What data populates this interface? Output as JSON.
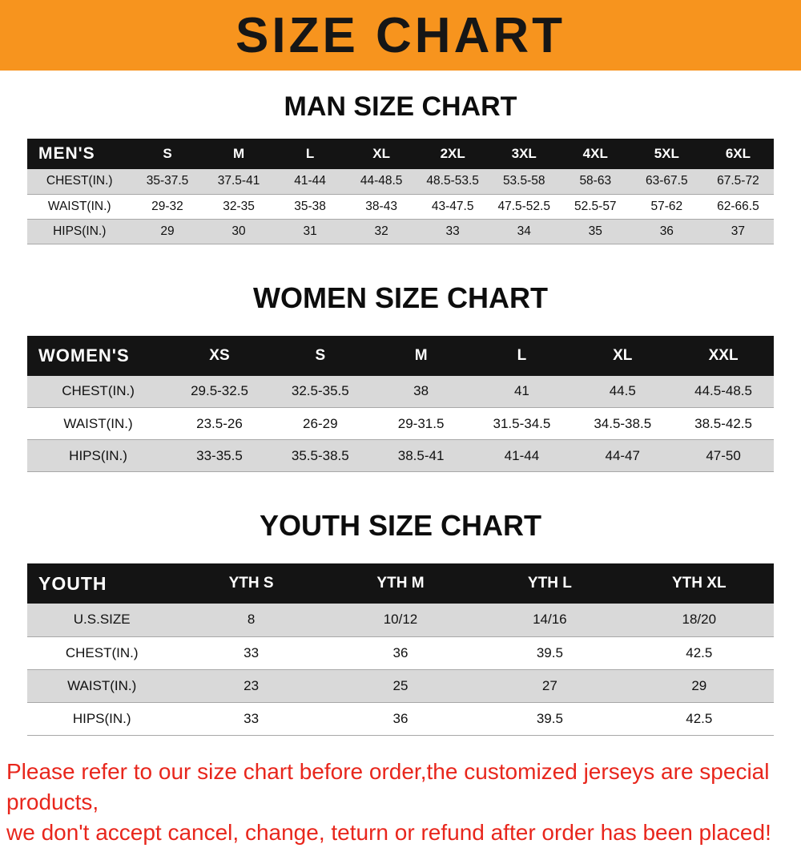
{
  "banner": {
    "title": "SIZE CHART"
  },
  "colors": {
    "banner_bg": "#f7941e",
    "table_header_bg": "#141414",
    "row_alt_gray": "#d9d9d9",
    "note_red": "#e8261c"
  },
  "men": {
    "heading": "MAN SIZE CHART",
    "label": "MEN'S",
    "sizes": [
      "S",
      "M",
      "L",
      "XL",
      "2XL",
      "3XL",
      "4XL",
      "5XL",
      "6XL"
    ],
    "rows": [
      {
        "label": "CHEST(IN.)",
        "cells": [
          "35-37.5",
          "37.5-41",
          "41-44",
          "44-48.5",
          "48.5-53.5",
          "53.5-58",
          "58-63",
          "63-67.5",
          "67.5-72"
        ]
      },
      {
        "label": "WAIST(IN.)",
        "cells": [
          "29-32",
          "32-35",
          "35-38",
          "38-43",
          "43-47.5",
          "47.5-52.5",
          "52.5-57",
          "57-62",
          "62-66.5"
        ]
      },
      {
        "label": "HIPS(IN.)",
        "cells": [
          "29",
          "30",
          "31",
          "32",
          "33",
          "34",
          "35",
          "36",
          "37"
        ]
      }
    ]
  },
  "women": {
    "heading": "WOMEN SIZE CHART",
    "label": "WOMEN'S",
    "sizes": [
      "XS",
      "S",
      "M",
      "L",
      "XL",
      "XXL"
    ],
    "rows": [
      {
        "label": "CHEST(IN.)",
        "cells": [
          "29.5-32.5",
          "32.5-35.5",
          "38",
          "41",
          "44.5",
          "44.5-48.5"
        ]
      },
      {
        "label": "WAIST(IN.)",
        "cells": [
          "23.5-26",
          "26-29",
          "29-31.5",
          "31.5-34.5",
          "34.5-38.5",
          "38.5-42.5"
        ]
      },
      {
        "label": "HIPS(IN.)",
        "cells": [
          "33-35.5",
          "35.5-38.5",
          "38.5-41",
          "41-44",
          "44-47",
          "47-50"
        ]
      }
    ]
  },
  "youth": {
    "heading": "YOUTH SIZE CHART",
    "label": "YOUTH",
    "sizes": [
      "YTH S",
      "YTH M",
      "YTH L",
      "YTH XL"
    ],
    "rows": [
      {
        "label": "U.S.SIZE",
        "cells": [
          "8",
          "10/12",
          "14/16",
          "18/20"
        ]
      },
      {
        "label": "CHEST(IN.)",
        "cells": [
          "33",
          "36",
          "39.5",
          "42.5"
        ]
      },
      {
        "label": "WAIST(IN.)",
        "cells": [
          "23",
          "25",
          "27",
          "29"
        ]
      },
      {
        "label": "HIPS(IN.)",
        "cells": [
          "33",
          "36",
          "39.5",
          "42.5"
        ]
      }
    ]
  },
  "note": {
    "line1": "Please refer to our size chart before order,the customized jerseys are special products,",
    "line2": "we don't accept cancel, change, teturn or refund after order has been placed!"
  }
}
